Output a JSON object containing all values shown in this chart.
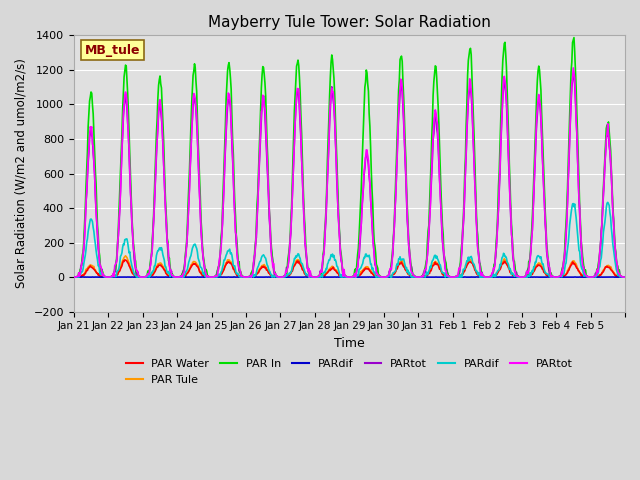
{
  "title": "Mayberry Tule Tower: Solar Radiation",
  "xlabel": "Time",
  "ylabel": "Solar Radiation (W/m2 and umol/m2/s)",
  "ylim": [
    -200,
    1400
  ],
  "yticks": [
    -200,
    0,
    200,
    400,
    600,
    800,
    1000,
    1200,
    1400
  ],
  "axes_bg": "#e0e0e0",
  "grid_color": "#ffffff",
  "series": [
    {
      "name": "PAR Water",
      "color": "#ff0000",
      "lw": 1.2
    },
    {
      "name": "PAR Tule",
      "color": "#ff9900",
      "lw": 1.2
    },
    {
      "name": "PAR In",
      "color": "#00dd00",
      "lw": 1.2
    },
    {
      "name": "PARdif",
      "color": "#0000cc",
      "lw": 1.2
    },
    {
      "name": "PARtot",
      "color": "#9900cc",
      "lw": 1.2
    },
    {
      "name": "PARdif",
      "color": "#00cccc",
      "lw": 1.2
    },
    {
      "name": "PARtot",
      "color": "#ff00ff",
      "lw": 1.2
    }
  ],
  "xtick_labels": [
    "Jan 21",
    "Jan 22",
    "Jan 23",
    "Jan 24",
    "Jan 25",
    "Jan 26",
    "Jan 27",
    "Jan 28",
    "Jan 29",
    "Jan 30",
    "Jan 31",
    "Feb 1",
    "Feb 2",
    "Feb 3",
    "Feb 4",
    "Feb 5",
    ""
  ],
  "station_label": "MB_tule",
  "station_label_color": "#8b0000",
  "station_box_color": "#ffff99",
  "station_box_edge": "#8b6914",
  "n_days": 16,
  "pts_per_day": 48,
  "par_in_peaks": [
    1080,
    1220,
    1160,
    1230,
    1250,
    1210,
    1270,
    1270,
    1180,
    1280,
    1210,
    1320,
    1350,
    1210,
    1380,
    900
  ],
  "par_tot_peaks": [
    860,
    1070,
    1020,
    1060,
    1060,
    1050,
    1100,
    1100,
    730,
    1130,
    950,
    1130,
    1150,
    1050,
    1200,
    850
  ],
  "par_water_peaks": [
    60,
    100,
    70,
    80,
    90,
    60,
    90,
    50,
    50,
    80,
    80,
    90,
    90,
    70,
    80,
    60
  ],
  "par_tule_peaks": [
    70,
    120,
    80,
    90,
    100,
    70,
    100,
    60,
    60,
    90,
    90,
    100,
    100,
    80,
    90,
    70
  ],
  "par_dif_cyan_peaks": [
    330,
    220,
    170,
    190,
    155,
    120,
    130,
    130,
    135,
    110,
    120,
    120,
    125,
    120,
    430,
    430
  ]
}
